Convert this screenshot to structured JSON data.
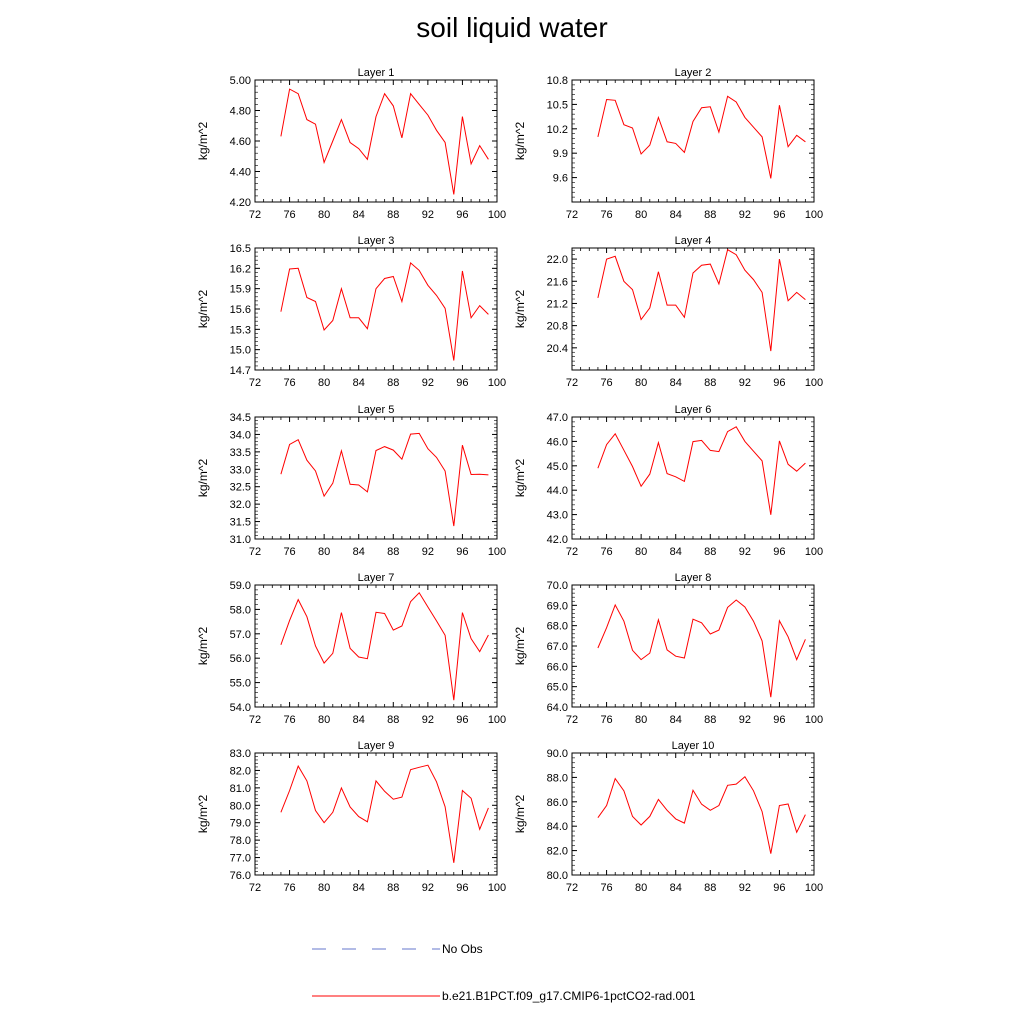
{
  "chart_data": {
    "type": "line",
    "title": "soil liquid water",
    "legend": [
      {
        "label": "No Obs",
        "color": "#6677cc",
        "style": "dashed"
      },
      {
        "label": "b.e21.B1PCT.f09_g17.CMIP6-1pctCO2-rad.001",
        "color": "#ff0000",
        "style": "solid"
      }
    ],
    "x": [
      75,
      76,
      77,
      78,
      79,
      80,
      81,
      82,
      83,
      84,
      85,
      86,
      87,
      88,
      89,
      90,
      91,
      92,
      93,
      94,
      95,
      96,
      97,
      98,
      99
    ],
    "x_ticks": [
      "72",
      "76",
      "80",
      "84",
      "88",
      "92",
      "96",
      "100"
    ],
    "xlim": [
      72,
      100
    ],
    "panels": [
      {
        "title": "Layer 1",
        "ylabel": "kg/m^2",
        "ylim": [
          4.2,
          5.0
        ],
        "y_ticks": [
          "4.20",
          "4.40",
          "4.60",
          "4.80",
          "5.00"
        ],
        "values": [
          4.63,
          4.94,
          4.91,
          4.74,
          4.71,
          4.46,
          4.6,
          4.74,
          4.59,
          4.55,
          4.48,
          4.76,
          4.91,
          4.83,
          4.62,
          4.91,
          4.84,
          4.77,
          4.67,
          4.59,
          4.25,
          4.76,
          4.45,
          4.57,
          4.48
        ]
      },
      {
        "title": "Layer 2",
        "ylabel": "kg/m^2",
        "ylim": [
          9.3,
          10.8
        ],
        "y_ticks": [
          "9.6",
          "9.9",
          "10.2",
          "10.5",
          "10.8"
        ],
        "values": [
          10.1,
          10.56,
          10.55,
          10.25,
          10.21,
          9.89,
          10.0,
          10.34,
          10.04,
          10.02,
          9.91,
          10.29,
          10.46,
          10.47,
          10.16,
          10.6,
          10.53,
          10.34,
          10.22,
          10.1,
          9.59,
          10.49,
          9.98,
          10.12,
          10.04
        ]
      },
      {
        "title": "Layer 3",
        "ylabel": "kg/m^2",
        "ylim": [
          14.7,
          16.5
        ],
        "y_ticks": [
          "14.7",
          "15.0",
          "15.3",
          "15.6",
          "15.9",
          "16.2",
          "16.5"
        ],
        "values": [
          15.56,
          16.19,
          16.2,
          15.77,
          15.71,
          15.29,
          15.43,
          15.9,
          15.47,
          15.47,
          15.31,
          15.9,
          16.05,
          16.08,
          15.71,
          16.28,
          16.17,
          15.95,
          15.8,
          15.61,
          14.84,
          16.16,
          15.47,
          15.65,
          15.52
        ]
      },
      {
        "title": "Layer 4",
        "ylabel": "kg/m^2",
        "ylim": [
          20.0,
          22.2
        ],
        "y_ticks": [
          "20.4",
          "20.8",
          "21.2",
          "21.6",
          "22.0"
        ],
        "values": [
          21.3,
          22.0,
          22.05,
          21.6,
          21.45,
          20.91,
          21.12,
          21.77,
          21.17,
          21.17,
          20.95,
          21.75,
          21.89,
          21.91,
          21.55,
          22.17,
          22.08,
          21.8,
          21.63,
          21.4,
          20.34,
          22.0,
          21.25,
          21.4,
          21.27
        ]
      },
      {
        "title": "Layer 5",
        "ylabel": "kg/m^2",
        "ylim": [
          31.0,
          34.5
        ],
        "y_ticks": [
          "31.0",
          "31.5",
          "32.0",
          "32.5",
          "33.0",
          "33.5",
          "34.0",
          "34.5"
        ],
        "values": [
          32.86,
          33.71,
          33.85,
          33.26,
          32.95,
          32.23,
          32.6,
          33.53,
          32.57,
          32.55,
          32.35,
          33.54,
          33.65,
          33.55,
          33.29,
          34.01,
          34.03,
          33.59,
          33.34,
          32.95,
          31.37,
          33.69,
          32.85,
          32.86,
          32.84
        ]
      },
      {
        "title": "Layer 6",
        "ylabel": "kg/m^2",
        "ylim": [
          42.0,
          47.0
        ],
        "y_ticks": [
          "42.0",
          "43.0",
          "44.0",
          "45.0",
          "46.0",
          "47.0"
        ],
        "values": [
          44.9,
          45.87,
          46.31,
          45.64,
          44.97,
          44.16,
          44.66,
          45.95,
          44.68,
          44.55,
          44.36,
          45.99,
          46.04,
          45.63,
          45.58,
          46.4,
          46.6,
          46.0,
          45.6,
          45.2,
          42.99,
          46.02,
          45.06,
          44.78,
          45.11
        ]
      },
      {
        "title": "Layer 7",
        "ylabel": "kg/m^2",
        "ylim": [
          54.0,
          59.0
        ],
        "y_ticks": [
          "54.0",
          "55.0",
          "56.0",
          "57.0",
          "58.0",
          "59.0"
        ],
        "values": [
          56.55,
          57.55,
          58.4,
          57.7,
          56.5,
          55.8,
          56.2,
          57.87,
          56.4,
          56.05,
          55.98,
          57.88,
          57.83,
          57.15,
          57.32,
          58.32,
          58.68,
          58.1,
          57.53,
          56.94,
          54.28,
          57.87,
          56.8,
          56.27,
          56.95
        ]
      },
      {
        "title": "Layer 8",
        "ylabel": "kg/m^2",
        "ylim": [
          64.0,
          70.0
        ],
        "y_ticks": [
          "64.0",
          "65.0",
          "66.0",
          "67.0",
          "68.0",
          "69.0",
          "70.0"
        ],
        "values": [
          66.9,
          67.9,
          69.02,
          68.22,
          66.79,
          66.33,
          66.65,
          68.29,
          66.81,
          66.5,
          66.41,
          68.32,
          68.14,
          67.59,
          67.78,
          68.9,
          69.26,
          68.92,
          68.22,
          67.25,
          64.48,
          68.24,
          67.45,
          66.33,
          67.33
        ]
      },
      {
        "title": "Layer 9",
        "ylabel": "kg/m^2",
        "ylim": [
          76.0,
          83.0
        ],
        "y_ticks": [
          "76.0",
          "77.0",
          "78.0",
          "79.0",
          "80.0",
          "81.0",
          "82.0",
          "83.0"
        ],
        "values": [
          79.6,
          80.85,
          82.25,
          81.4,
          79.7,
          79.0,
          79.6,
          81.0,
          79.9,
          79.35,
          79.05,
          81.4,
          80.8,
          80.35,
          80.47,
          82.05,
          82.18,
          82.3,
          81.35,
          79.92,
          76.7,
          80.85,
          80.4,
          78.62,
          79.85
        ]
      },
      {
        "title": "Layer 10",
        "ylabel": "kg/m^2",
        "ylim": [
          80.0,
          90.0
        ],
        "y_ticks": [
          "80.0",
          "82.0",
          "84.0",
          "86.0",
          "88.0",
          "90.0"
        ],
        "values": [
          84.7,
          85.7,
          87.9,
          86.9,
          84.8,
          84.1,
          84.8,
          86.2,
          85.3,
          84.6,
          84.25,
          86.95,
          85.8,
          85.3,
          85.7,
          87.35,
          87.45,
          88.05,
          86.9,
          85.2,
          81.75,
          85.7,
          85.82,
          83.5,
          84.95
        ]
      }
    ]
  }
}
